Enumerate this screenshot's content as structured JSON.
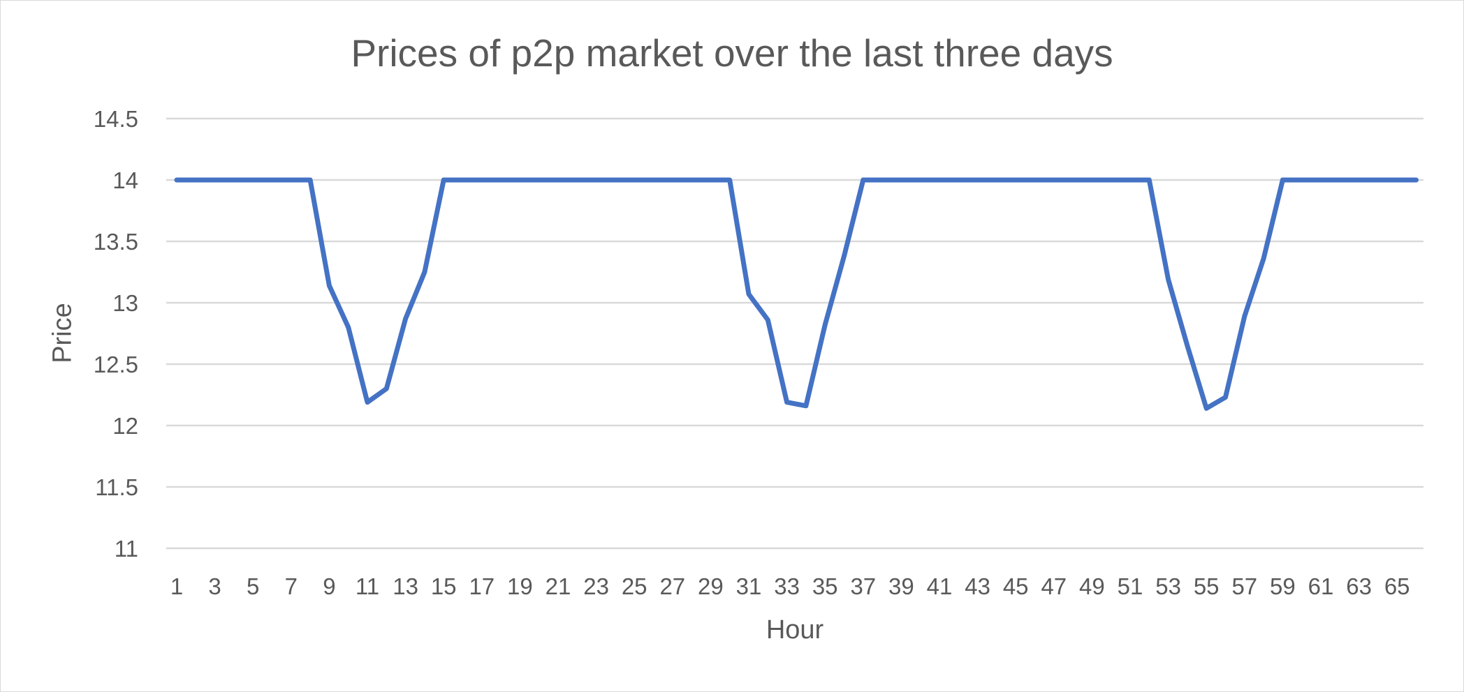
{
  "chart_data": {
    "type": "line",
    "title": "Prices of p2p market over the last three days",
    "xlabel": "Hour",
    "ylabel": "Price",
    "ylim": [
      11,
      14.5
    ],
    "y_ticks": [
      "11",
      "11.5",
      "12",
      "12.5",
      "13",
      "13.5",
      "14",
      "14.5"
    ],
    "x_tick_labels": [
      "1",
      "3",
      "5",
      "7",
      "9",
      "11",
      "13",
      "15",
      "17",
      "19",
      "21",
      "23",
      "25",
      "27",
      "29",
      "31",
      "33",
      "35",
      "37",
      "39",
      "41",
      "43",
      "45",
      "47",
      "49",
      "51",
      "53",
      "55",
      "57",
      "59",
      "61",
      "63",
      "65"
    ],
    "grid": true,
    "legend": "none",
    "colors": {
      "series": "#4472c4",
      "grid": "#d9d9d9",
      "text": "#595959"
    },
    "x": [
      1,
      2,
      3,
      4,
      5,
      6,
      7,
      8,
      9,
      10,
      11,
      12,
      13,
      14,
      15,
      16,
      17,
      18,
      19,
      20,
      21,
      22,
      23,
      24,
      25,
      26,
      27,
      28,
      29,
      30,
      31,
      32,
      33,
      34,
      35,
      36,
      37,
      38,
      39,
      40,
      41,
      42,
      43,
      44,
      45,
      46,
      47,
      48,
      49,
      50,
      51,
      52,
      53,
      54,
      55,
      56,
      57,
      58,
      59,
      60,
      61,
      62,
      63,
      64,
      65,
      66
    ],
    "series": [
      {
        "values": [
          14,
          14,
          14,
          14,
          14,
          14,
          14,
          14,
          13.14,
          12.8,
          12.19,
          12.3,
          12.87,
          13.25,
          14,
          14,
          14,
          14,
          14,
          14,
          14,
          14,
          14,
          14,
          14,
          14,
          14,
          14,
          14,
          14,
          13.07,
          12.86,
          12.19,
          12.16,
          12.82,
          13.38,
          14,
          14,
          14,
          14,
          14,
          14,
          14,
          14,
          14,
          14,
          14,
          14,
          14,
          14,
          14,
          14,
          13.19,
          12.65,
          12.14,
          12.23,
          12.89,
          13.36,
          14,
          14,
          14,
          14,
          14,
          14,
          14,
          14
        ]
      }
    ]
  }
}
